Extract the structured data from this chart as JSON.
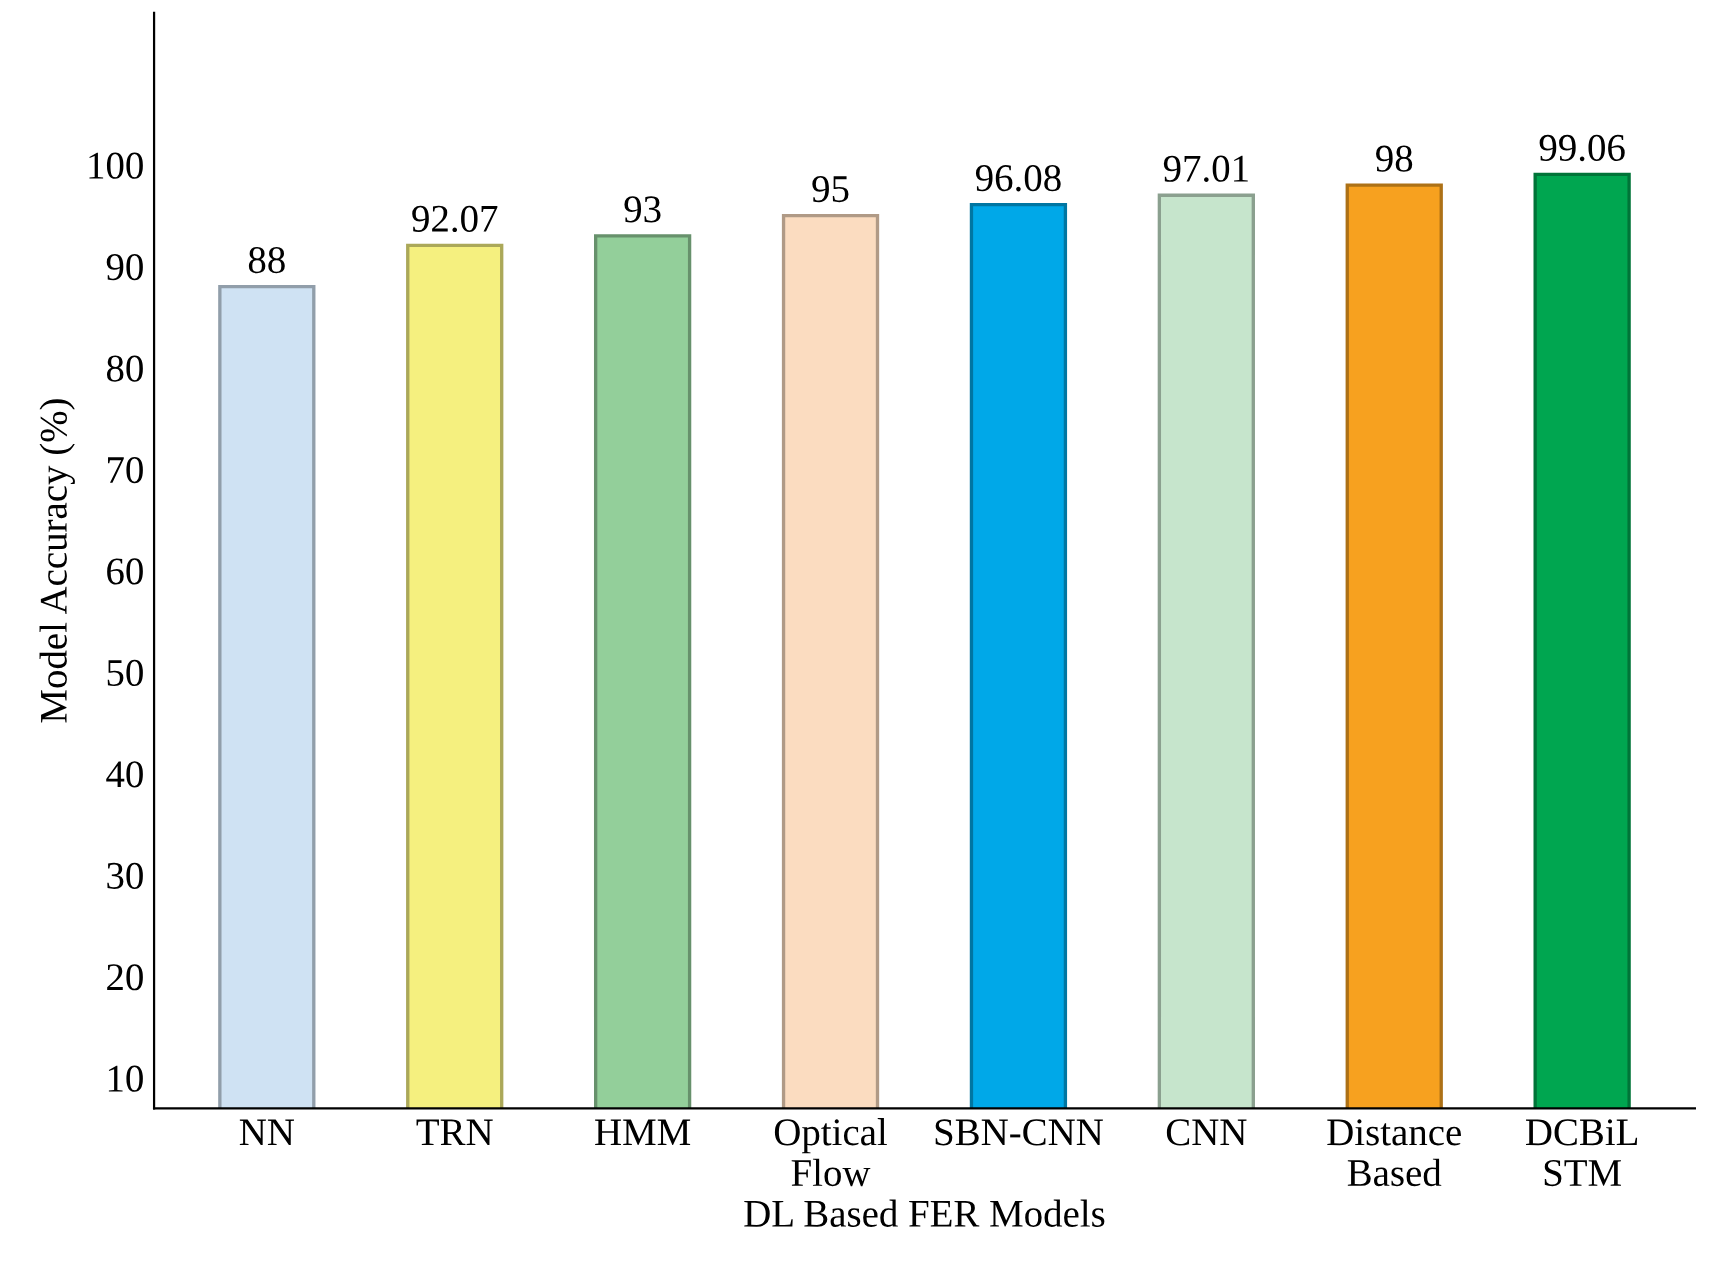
{
  "chart_data": {
    "type": "bar",
    "xlabel": "DL Based FER Models",
    "ylabel": "Model Accuracy (%)",
    "categories": [
      "NN",
      "TRN",
      "HMM",
      "Optical\nFlow",
      "SBN-CNN",
      "CNN",
      "Distance\nBased",
      "DCBiL\nSTM"
    ],
    "values": [
      88,
      92.07,
      93,
      95,
      96.08,
      97.01,
      98,
      99.06
    ],
    "colors": [
      "#cfe2f3",
      "#f5f07f",
      "#93cf9a",
      "#fbdcc0",
      "#00a8e8",
      "#c6e5cc",
      "#f7a11f",
      "#00a650"
    ],
    "ylim": [
      7,
      115
    ],
    "yticks": [
      10,
      20,
      30,
      40,
      50,
      60,
      70,
      80,
      90,
      100
    ],
    "data_labels": true,
    "grid": false,
    "legend": false
  }
}
